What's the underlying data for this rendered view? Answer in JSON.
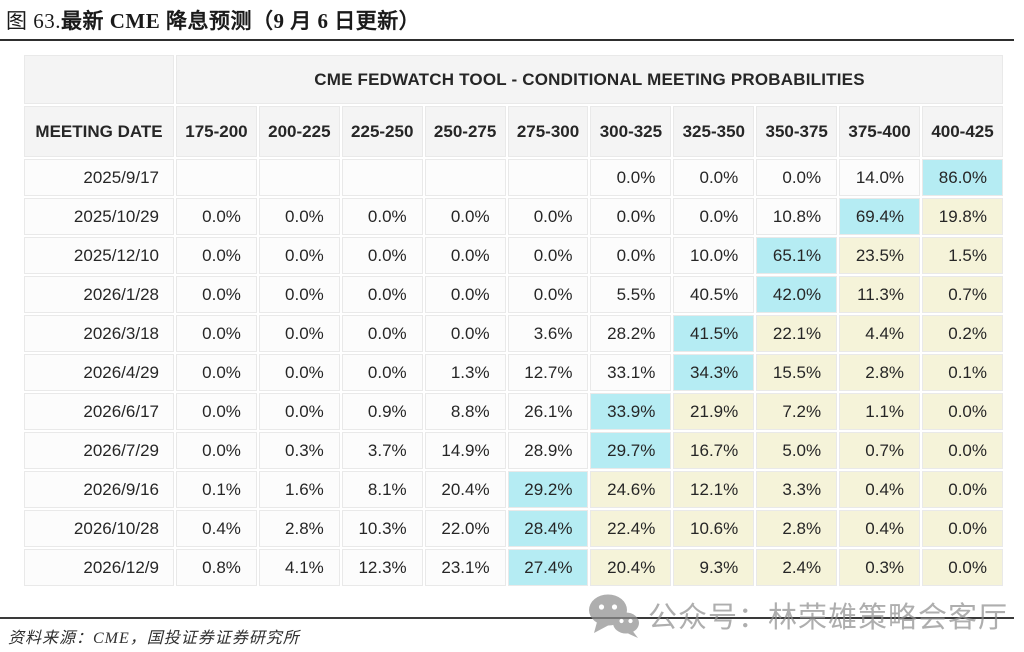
{
  "title": {
    "prefix": "图 63.",
    "main": "最新 CME 降息预测（9 月 6 日更新）"
  },
  "chart_data": {
    "type": "table",
    "band_title": "CME FEDWATCH TOOL - CONDITIONAL MEETING PROBABILITIES",
    "date_column_header": "MEETING DATE",
    "rate_range_headers": [
      "175-200",
      "200-225",
      "225-250",
      "250-275",
      "275-300",
      "300-325",
      "325-350",
      "350-375",
      "375-400",
      "400-425"
    ],
    "highlight_codes": {
      "c": "cyan",
      "y": "yellow",
      "": "none"
    },
    "rows": [
      {
        "date": "2025/9/17",
        "values": [
          "",
          "",
          "",
          "",
          "",
          "0.0%",
          "0.0%",
          "0.0%",
          "14.0%",
          "86.0%"
        ],
        "highlights": [
          "",
          "",
          "",
          "",
          "",
          "",
          "",
          "",
          "",
          "c"
        ]
      },
      {
        "date": "2025/10/29",
        "values": [
          "0.0%",
          "0.0%",
          "0.0%",
          "0.0%",
          "0.0%",
          "0.0%",
          "0.0%",
          "10.8%",
          "69.4%",
          "19.8%"
        ],
        "highlights": [
          "",
          "",
          "",
          "",
          "",
          "",
          "",
          "",
          "c",
          "y"
        ]
      },
      {
        "date": "2025/12/10",
        "values": [
          "0.0%",
          "0.0%",
          "0.0%",
          "0.0%",
          "0.0%",
          "0.0%",
          "10.0%",
          "65.1%",
          "23.5%",
          "1.5%"
        ],
        "highlights": [
          "",
          "",
          "",
          "",
          "",
          "",
          "",
          "c",
          "y",
          "y"
        ]
      },
      {
        "date": "2026/1/28",
        "values": [
          "0.0%",
          "0.0%",
          "0.0%",
          "0.0%",
          "0.0%",
          "5.5%",
          "40.5%",
          "42.0%",
          "11.3%",
          "0.7%"
        ],
        "highlights": [
          "",
          "",
          "",
          "",
          "",
          "",
          "",
          "c",
          "y",
          "y"
        ]
      },
      {
        "date": "2026/3/18",
        "values": [
          "0.0%",
          "0.0%",
          "0.0%",
          "0.0%",
          "3.6%",
          "28.2%",
          "41.5%",
          "22.1%",
          "4.4%",
          "0.2%"
        ],
        "highlights": [
          "",
          "",
          "",
          "",
          "",
          "",
          "c",
          "y",
          "y",
          "y"
        ]
      },
      {
        "date": "2026/4/29",
        "values": [
          "0.0%",
          "0.0%",
          "0.0%",
          "1.3%",
          "12.7%",
          "33.1%",
          "34.3%",
          "15.5%",
          "2.8%",
          "0.1%"
        ],
        "highlights": [
          "",
          "",
          "",
          "",
          "",
          "",
          "c",
          "y",
          "y",
          "y"
        ]
      },
      {
        "date": "2026/6/17",
        "values": [
          "0.0%",
          "0.0%",
          "0.9%",
          "8.8%",
          "26.1%",
          "33.9%",
          "21.9%",
          "7.2%",
          "1.1%",
          "0.0%"
        ],
        "highlights": [
          "",
          "",
          "",
          "",
          "",
          "c",
          "y",
          "y",
          "y",
          "y"
        ]
      },
      {
        "date": "2026/7/29",
        "values": [
          "0.0%",
          "0.3%",
          "3.7%",
          "14.9%",
          "28.9%",
          "29.7%",
          "16.7%",
          "5.0%",
          "0.7%",
          "0.0%"
        ],
        "highlights": [
          "",
          "",
          "",
          "",
          "",
          "c",
          "y",
          "y",
          "y",
          "y"
        ]
      },
      {
        "date": "2026/9/16",
        "values": [
          "0.1%",
          "1.6%",
          "8.1%",
          "20.4%",
          "29.2%",
          "24.6%",
          "12.1%",
          "3.3%",
          "0.4%",
          "0.0%"
        ],
        "highlights": [
          "",
          "",
          "",
          "",
          "c",
          "y",
          "y",
          "y",
          "y",
          "y"
        ]
      },
      {
        "date": "2026/10/28",
        "values": [
          "0.4%",
          "2.8%",
          "10.3%",
          "22.0%",
          "28.4%",
          "22.4%",
          "10.6%",
          "2.8%",
          "0.4%",
          "0.0%"
        ],
        "highlights": [
          "",
          "",
          "",
          "",
          "c",
          "y",
          "y",
          "y",
          "y",
          "y"
        ]
      },
      {
        "date": "2026/12/9",
        "values": [
          "0.8%",
          "4.1%",
          "12.3%",
          "23.1%",
          "27.4%",
          "20.4%",
          "9.3%",
          "2.4%",
          "0.3%",
          "0.0%"
        ],
        "highlights": [
          "",
          "",
          "",
          "",
          "c",
          "y",
          "y",
          "y",
          "y",
          "y"
        ]
      }
    ]
  },
  "footer": {
    "source": "资料来源：CME，国投证券证券研究所"
  },
  "watermark": {
    "icon": "wechat-icon",
    "text": "公众号：林荣雄策略会客厅"
  },
  "colors": {
    "highlight_cyan": "#b5ecf3",
    "highlight_yellow": "#f5f3d9",
    "header_bg": "#f4f4f4",
    "cell_bg": "#fcfcfc",
    "rule": "#2e2e2e",
    "watermark_gray": "#8f8f8f"
  }
}
